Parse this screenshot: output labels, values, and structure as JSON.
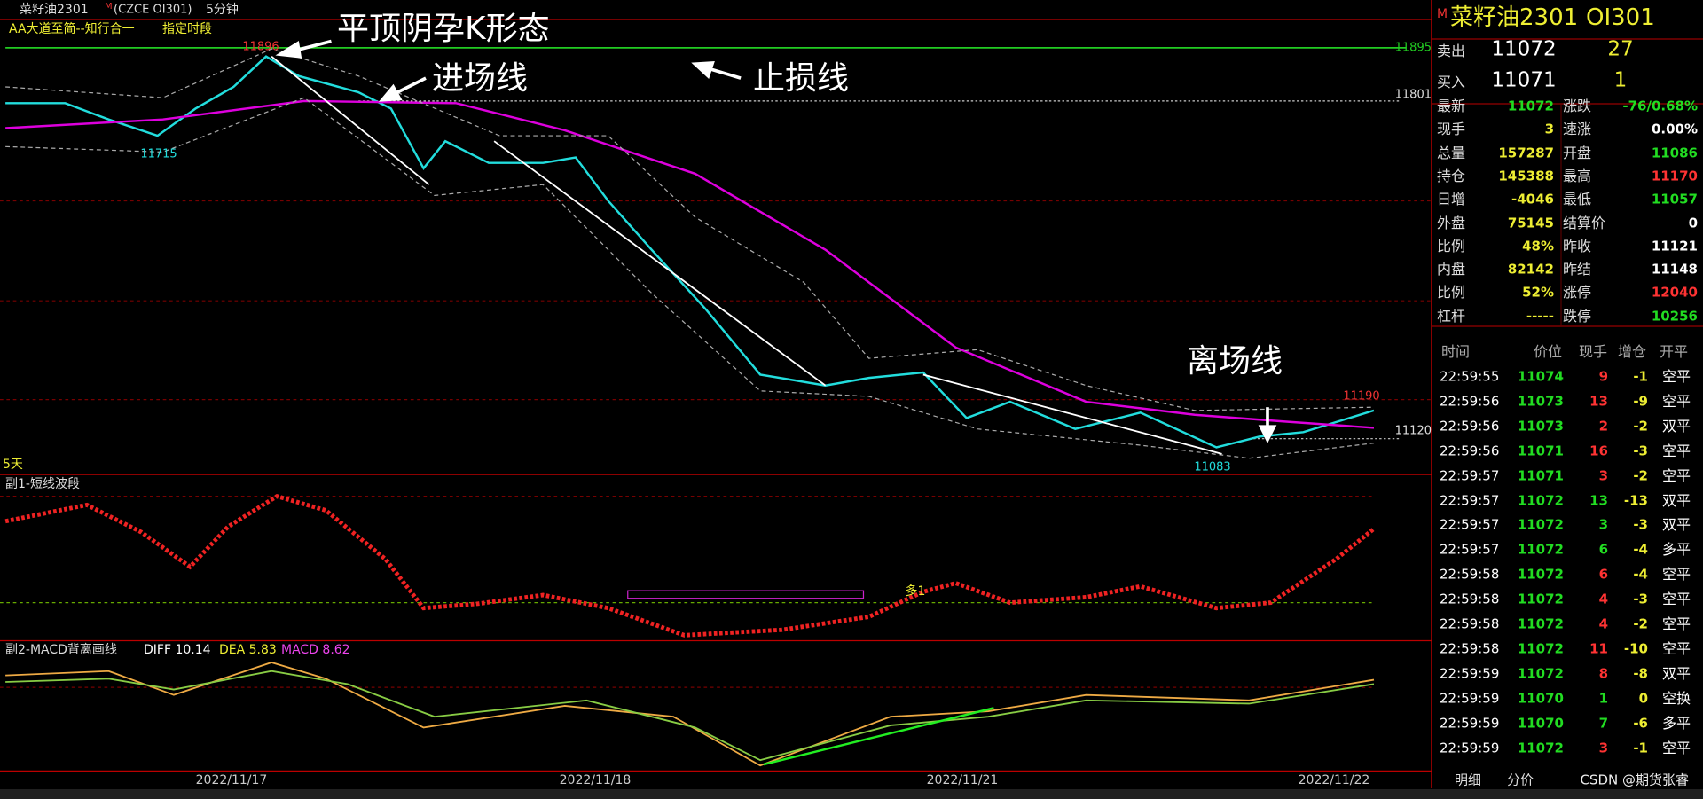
{
  "header": {
    "symbol": "菜籽油2301",
    "flag": "M",
    "code": "(CZCE OI301)",
    "period": "5分钟"
  },
  "main_pane": {
    "indicator": "AA大道至简--知行合一",
    "range": "指定时段",
    "annotations": {
      "pattern": "平顶阴孕K形态",
      "entry": "进场线",
      "stop": "止损线",
      "exit": "离场线"
    },
    "price_labels": {
      "high": 11896,
      "low_left": 11715,
      "stop_line": 11895,
      "entry_line": 11801,
      "high_right": 11190,
      "exit_line": 11120,
      "low_right": 11083
    },
    "days": "5天"
  },
  "sub1": {
    "title": "副1-短线波段",
    "signal": "多1"
  },
  "sub2": {
    "title": "副2-MACD背离画线",
    "diff": "DIFF 10.14",
    "dea": "DEA 5.83",
    "macd": "MACD 8.62"
  },
  "dates": [
    "2022/11/17",
    "2022/11/18",
    "2022/11/21",
    "2022/11/22"
  ],
  "quote": {
    "flag": "M",
    "name": "菜籽油2301",
    "code": "OI301",
    "ask": {
      "label": "卖出",
      "price": 11072,
      "volume": 27
    },
    "bid": {
      "label": "买入",
      "price": 11071,
      "volume": 1
    },
    "stats": [
      [
        "最新",
        11072,
        "涨跌",
        "-76/0.68%"
      ],
      [
        "现手",
        3,
        "速涨",
        "0.00%"
      ],
      [
        "总量",
        157287,
        "开盘",
        11086
      ],
      [
        "持仓",
        145388,
        "最高",
        11170
      ],
      [
        "日增",
        -4046,
        "最低",
        11057
      ],
      [
        "外盘",
        75145,
        "结算价",
        0
      ],
      [
        "比例",
        "48%",
        "昨收",
        11121
      ],
      [
        "内盘",
        82142,
        "昨结",
        11148
      ],
      [
        "比例",
        "52%",
        "涨停",
        12040
      ],
      [
        "杠杆",
        "-----",
        "跌停",
        10256
      ]
    ]
  },
  "trades": {
    "columns": [
      "时间",
      "价位",
      "现手",
      "增仓",
      "开平"
    ],
    "rows": [
      [
        "22:59:55",
        11074,
        9,
        -1,
        "空平"
      ],
      [
        "22:59:56",
        11073,
        13,
        -9,
        "空平"
      ],
      [
        "22:59:56",
        11073,
        2,
        -2,
        "双平"
      ],
      [
        "22:59:56",
        11071,
        16,
        -3,
        "空平"
      ],
      [
        "22:59:57",
        11071,
        3,
        -2,
        "空平"
      ],
      [
        "22:59:57",
        11072,
        13,
        -13,
        "双平"
      ],
      [
        "22:59:57",
        11072,
        3,
        -3,
        "双平"
      ],
      [
        "22:59:57",
        11072,
        6,
        -4,
        "多平"
      ],
      [
        "22:59:58",
        11072,
        6,
        -4,
        "空平"
      ],
      [
        "22:59:58",
        11072,
        4,
        -3,
        "空平"
      ],
      [
        "22:59:58",
        11072,
        4,
        -2,
        "空平"
      ],
      [
        "22:59:58",
        11072,
        11,
        -10,
        "空平"
      ],
      [
        "22:59:59",
        11072,
        8,
        -8,
        "双平"
      ],
      [
        "22:59:59",
        11070,
        1,
        0,
        "空换"
      ],
      [
        "22:59:59",
        11070,
        7,
        -6,
        "多平"
      ],
      [
        "22:59:59",
        11072,
        3,
        -1,
        "空平"
      ]
    ]
  },
  "tabs": [
    "明细",
    "分价"
  ],
  "watermark": "CSDN @期货张睿"
}
